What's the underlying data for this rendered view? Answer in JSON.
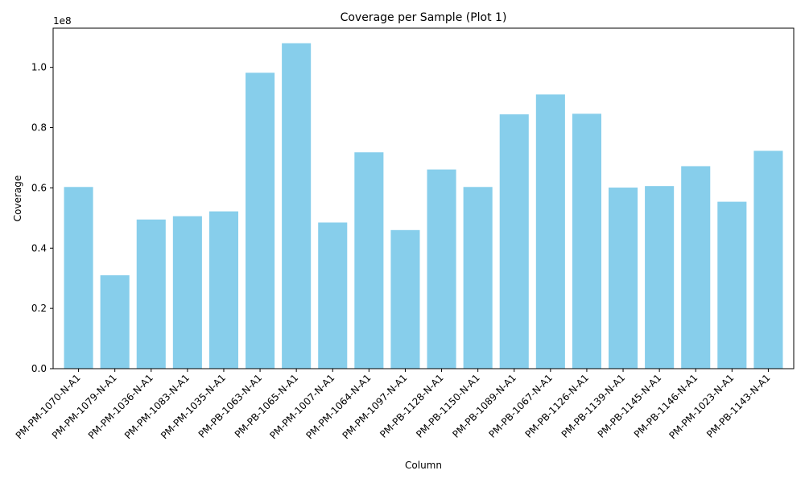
{
  "chart_data": {
    "type": "bar",
    "title": "Coverage per Sample (Plot 1)",
    "xlabel": "Column",
    "ylabel": "Coverage",
    "y_offset_label": "1e8",
    "y_scale": 100000000,
    "ylim": [
      0,
      113000000
    ],
    "y_ticks": [
      0,
      20000000,
      40000000,
      60000000,
      80000000,
      100000000
    ],
    "y_tick_labels": [
      "0.0",
      "0.2",
      "0.4",
      "0.6",
      "0.8",
      "1.0"
    ],
    "grid": false,
    "bar_color": "#87CEEB",
    "categories": [
      "PM-PM-1070-N-A1",
      "PM-PM-1079-N-A1",
      "PM-PM-1036-N-A1",
      "PM-PM-1083-N-A1",
      "PM-PM-1035-N-A1",
      "PM-PB-1063-N-A1",
      "PM-PB-1065-N-A1",
      "PM-PM-1007-N-A1",
      "PM-PM-1064-N-A1",
      "PM-PM-1097-N-A1",
      "PM-PB-1128-N-A1",
      "PM-PB-1150-N-A1",
      "PM-PB-1089-N-A1",
      "PM-PB-1067-N-A1",
      "PM-PB-1126-N-A1",
      "PM-PB-1139-N-A1",
      "PM-PB-1145-N-A1",
      "PM-PB-1146-N-A1",
      "PM-PM-1023-N-A1",
      "PM-PB-1143-N-A1"
    ],
    "values": [
      60300000,
      31000000,
      49500000,
      50600000,
      52200000,
      98200000,
      108000000,
      48500000,
      71800000,
      46000000,
      66100000,
      60300000,
      84400000,
      91000000,
      84600000,
      60100000,
      60600000,
      67200000,
      55400000,
      72300000
    ]
  }
}
